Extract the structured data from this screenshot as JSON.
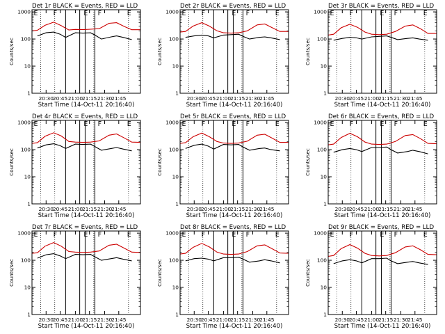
{
  "figure": {
    "suptitle": "",
    "background": "#ffffff"
  },
  "chart_data": [
    {
      "type": "line",
      "title": "Det 1r BLACK = Events, RED = LLD",
      "xlabel": "Start Time (14-Oct-11 20:16:40)",
      "ylabel": "Counts/sec",
      "xticks": [
        "20:30",
        "20:45",
        "21:00",
        "21:15",
        "21:30",
        "21:45"
      ],
      "yticks": [
        "1",
        "10",
        "100",
        "1000"
      ],
      "ylim": [
        1,
        1200
      ],
      "ylog": true,
      "flags": [
        "E",
        "F",
        "E",
        "F",
        "E"
      ],
      "grid": "dotted vertical",
      "series": [
        {
          "name": "Events",
          "color": "#000000",
          "x": [
            0,
            0.05,
            0.13,
            0.2,
            0.26,
            0.31,
            0.4,
            0.47,
            0.54,
            0.58,
            0.64,
            0.73,
            0.78,
            0.84,
            0.92,
            1.0
          ],
          "y": [
            null,
            130,
            170,
            180,
            150,
            115,
            170,
            165,
            170,
            140,
            100,
            120,
            130,
            115,
            95,
            null
          ]
        },
        {
          "name": "LLD",
          "color": "#cc0000",
          "x": [
            0,
            0.05,
            0.12,
            0.2,
            0.27,
            0.34,
            0.4,
            0.47,
            0.54,
            0.62,
            0.71,
            0.78,
            0.85,
            0.92,
            1.0
          ],
          "y": [
            200,
            210,
            320,
            420,
            310,
            215,
            225,
            222,
            230,
            240,
            380,
            400,
            290,
            220,
            220
          ]
        }
      ]
    },
    {
      "type": "line",
      "title": "Det 2r BLACK = Events, RED = LLD",
      "xlabel": "Start Time (14-Oct-11 20:16:40)",
      "ylabel": "Counts/sec",
      "xticks": [
        "20:30",
        "20:45",
        "21:00",
        "21:15",
        "21:30",
        "21:45"
      ],
      "yticks": [
        "1",
        "10",
        "100",
        "1000"
      ],
      "ylim": [
        1,
        1200
      ],
      "ylog": true,
      "flags": [
        "E",
        "F",
        "E",
        "F",
        "E"
      ],
      "grid": "dotted vertical",
      "series": [
        {
          "name": "Events",
          "color": "#000000",
          "x": [
            0,
            0.05,
            0.13,
            0.2,
            0.26,
            0.31,
            0.4,
            0.47,
            0.54,
            0.58,
            0.64,
            0.73,
            0.78,
            0.84,
            0.92,
            1.0
          ],
          "y": [
            null,
            115,
            130,
            140,
            130,
            110,
            140,
            145,
            150,
            125,
            100,
            115,
            120,
            110,
            95,
            null
          ]
        },
        {
          "name": "LLD",
          "color": "#cc0000",
          "x": [
            0,
            0.05,
            0.12,
            0.2,
            0.27,
            0.34,
            0.4,
            0.47,
            0.54,
            0.62,
            0.71,
            0.78,
            0.85,
            0.92,
            1.0
          ],
          "y": [
            180,
            190,
            300,
            400,
            300,
            200,
            170,
            165,
            170,
            200,
            330,
            360,
            260,
            190,
            190
          ]
        }
      ]
    },
    {
      "type": "line",
      "title": "Det 3r BLACK = Events, RED = LLD",
      "xlabel": "Start Time (14-Oct-11 20:16:40)",
      "ylabel": "Counts/sec",
      "xticks": [
        "20:30",
        "20:45",
        "21:00",
        "21:15",
        "21:30",
        "21:45"
      ],
      "yticks": [
        "1",
        "10",
        "100",
        "1000"
      ],
      "ylim": [
        1,
        1200
      ],
      "ylog": true,
      "flags": [
        "E",
        "F",
        "E",
        "F",
        "E"
      ],
      "grid": "dotted vertical",
      "series": [
        {
          "name": "Events",
          "color": "#000000",
          "x": [
            0,
            0.05,
            0.13,
            0.2,
            0.26,
            0.31,
            0.4,
            0.47,
            0.54,
            0.58,
            0.64,
            0.73,
            0.78,
            0.84,
            0.92,
            1.0
          ],
          "y": [
            null,
            90,
            105,
            115,
            110,
            100,
            120,
            125,
            130,
            115,
            95,
            105,
            110,
            100,
            90,
            null
          ]
        },
        {
          "name": "LLD",
          "color": "#cc0000",
          "x": [
            0,
            0.05,
            0.12,
            0.2,
            0.27,
            0.34,
            0.4,
            0.47,
            0.54,
            0.62,
            0.71,
            0.78,
            0.85,
            0.92,
            1.0
          ],
          "y": [
            140,
            150,
            260,
            350,
            270,
            180,
            150,
            145,
            150,
            190,
            300,
            330,
            240,
            160,
            160
          ]
        }
      ]
    },
    {
      "type": "line",
      "title": "Det 4r BLACK = Events, RED = LLD",
      "xlabel": "Start Time (14-Oct-11 20:16:40)",
      "ylabel": "Counts/sec",
      "xticks": [
        "20:30",
        "20:45",
        "21:00",
        "21:15",
        "21:30",
        "21:45"
      ],
      "yticks": [
        "1",
        "10",
        "100",
        "1000"
      ],
      "ylim": [
        1,
        1200
      ],
      "ylog": true,
      "flags": [
        "E",
        "F",
        "E",
        "F",
        "E"
      ],
      "grid": "dotted vertical",
      "series": [
        {
          "name": "Events",
          "color": "#000000",
          "x": [
            0,
            0.05,
            0.13,
            0.2,
            0.26,
            0.31,
            0.4,
            0.47,
            0.54,
            0.58,
            0.64,
            0.73,
            0.78,
            0.84,
            0.92,
            1.0
          ],
          "y": [
            null,
            115,
            150,
            165,
            140,
            110,
            160,
            155,
            160,
            130,
            95,
            110,
            120,
            105,
            90,
            null
          ]
        },
        {
          "name": "LLD",
          "color": "#cc0000",
          "x": [
            0,
            0.05,
            0.12,
            0.2,
            0.27,
            0.34,
            0.4,
            0.47,
            0.54,
            0.62,
            0.71,
            0.78,
            0.85,
            0.92,
            1.0
          ],
          "y": [
            170,
            180,
            310,
            420,
            320,
            200,
            190,
            185,
            190,
            210,
            340,
            380,
            270,
            190,
            185
          ]
        }
      ]
    },
    {
      "type": "line",
      "title": "Det 5r BLACK = Events, RED = LLD",
      "xlabel": "Start Time (14-Oct-11 20:16:40)",
      "ylabel": "Counts/sec",
      "xticks": [
        "20:30",
        "20:45",
        "21:00",
        "21:15",
        "21:30",
        "21:45"
      ],
      "yticks": [
        "1",
        "10",
        "100",
        "1000"
      ],
      "ylim": [
        1,
        1200
      ],
      "ylog": true,
      "flags": [
        "E",
        "F",
        "E",
        "F",
        "E"
      ],
      "grid": "dotted vertical",
      "series": [
        {
          "name": "Events",
          "color": "#000000",
          "x": [
            0,
            0.05,
            0.13,
            0.2,
            0.26,
            0.31,
            0.4,
            0.47,
            0.54,
            0.58,
            0.64,
            0.73,
            0.78,
            0.84,
            0.92,
            1.0
          ],
          "y": [
            null,
            110,
            145,
            160,
            135,
            105,
            155,
            150,
            155,
            125,
            95,
            110,
            115,
            100,
            90,
            null
          ]
        },
        {
          "name": "LLD",
          "color": "#cc0000",
          "x": [
            0,
            0.05,
            0.12,
            0.2,
            0.27,
            0.34,
            0.4,
            0.47,
            0.54,
            0.62,
            0.71,
            0.78,
            0.85,
            0.92,
            1.0
          ],
          "y": [
            170,
            180,
            300,
            410,
            300,
            200,
            175,
            170,
            175,
            205,
            340,
            370,
            265,
            185,
            185
          ]
        }
      ]
    },
    {
      "type": "line",
      "title": "Det 6r BLACK = Events, RED = LLD",
      "xlabel": "Start Time (14-Oct-11 20:16:40)",
      "ylabel": "Counts/sec",
      "xticks": [
        "20:30",
        "20:45",
        "21:00",
        "21:15",
        "21:30",
        "21:45"
      ],
      "yticks": [
        "1",
        "10",
        "100",
        "1000"
      ],
      "ylim": [
        1,
        1200
      ],
      "ylog": true,
      "flags": [
        "E",
        "F",
        "E",
        "F",
        "E"
      ],
      "grid": "dotted vertical",
      "series": [
        {
          "name": "Events",
          "color": "#000000",
          "x": [
            0,
            0.05,
            0.13,
            0.2,
            0.26,
            0.31,
            0.4,
            0.47,
            0.54,
            0.58,
            0.64,
            0.73,
            0.78,
            0.84,
            0.92,
            1.0
          ],
          "y": [
            null,
            80,
            100,
            110,
            100,
            85,
            120,
            120,
            125,
            100,
            75,
            85,
            95,
            85,
            70,
            null
          ]
        },
        {
          "name": "LLD",
          "color": "#cc0000",
          "x": [
            0,
            0.05,
            0.12,
            0.2,
            0.27,
            0.34,
            0.4,
            0.47,
            0.54,
            0.62,
            0.71,
            0.78,
            0.85,
            0.92,
            1.0
          ],
          "y": [
            150,
            160,
            280,
            400,
            300,
            190,
            160,
            155,
            160,
            200,
            330,
            360,
            255,
            170,
            165
          ]
        }
      ]
    },
    {
      "type": "line",
      "title": "Det 7r BLACK = Events, RED = LLD",
      "xlabel": "Start Time (14-Oct-11 20:16:40)",
      "ylabel": "Counts/sec",
      "xticks": [
        "20:30",
        "20:45",
        "21:00",
        "21:15",
        "21:30",
        "21:45"
      ],
      "yticks": [
        "1",
        "10",
        "100",
        "1000"
      ],
      "ylim": [
        1,
        1200
      ],
      "ylog": true,
      "flags": [
        "E",
        "F",
        "E",
        "F",
        "E"
      ],
      "grid": "dotted vertical",
      "series": [
        {
          "name": "Events",
          "color": "#000000",
          "x": [
            0,
            0.05,
            0.13,
            0.2,
            0.26,
            0.31,
            0.4,
            0.47,
            0.54,
            0.58,
            0.64,
            0.73,
            0.78,
            0.84,
            0.92,
            1.0
          ],
          "y": [
            null,
            120,
            160,
            175,
            145,
            115,
            165,
            160,
            165,
            135,
            100,
            115,
            125,
            110,
            95,
            null
          ]
        },
        {
          "name": "LLD",
          "color": "#cc0000",
          "x": [
            0,
            0.05,
            0.12,
            0.2,
            0.27,
            0.34,
            0.4,
            0.47,
            0.54,
            0.62,
            0.71,
            0.78,
            0.85,
            0.92,
            1.0
          ],
          "y": [
            180,
            190,
            330,
            450,
            330,
            210,
            200,
            195,
            200,
            220,
            360,
            390,
            280,
            200,
            195
          ]
        }
      ]
    },
    {
      "type": "line",
      "title": "Det 8r BLACK = Events, RED = LLD",
      "xlabel": "Start Time (14-Oct-11 20:16:40)",
      "ylabel": "Counts/sec",
      "xticks": [
        "20:30",
        "20:45",
        "21:00",
        "21:15",
        "21:30",
        "21:45"
      ],
      "yticks": [
        "1",
        "10",
        "100",
        "1000"
      ],
      "ylim": [
        1,
        1200
      ],
      "ylog": true,
      "flags": [
        "E",
        "F",
        "E",
        "F",
        "E"
      ],
      "grid": "dotted vertical",
      "series": [
        {
          "name": "Events",
          "color": "#000000",
          "x": [
            0,
            0.05,
            0.13,
            0.2,
            0.26,
            0.31,
            0.4,
            0.47,
            0.54,
            0.58,
            0.64,
            0.73,
            0.78,
            0.84,
            0.92,
            1.0
          ],
          "y": [
            null,
            95,
            115,
            120,
            110,
            95,
            125,
            125,
            130,
            110,
            85,
            95,
            105,
            95,
            80,
            null
          ]
        },
        {
          "name": "LLD",
          "color": "#cc0000",
          "x": [
            0,
            0.05,
            0.12,
            0.2,
            0.27,
            0.34,
            0.4,
            0.47,
            0.54,
            0.62,
            0.71,
            0.78,
            0.85,
            0.92,
            1.0
          ],
          "y": [
            170,
            180,
            300,
            420,
            310,
            200,
            170,
            165,
            170,
            210,
            340,
            370,
            265,
            185,
            180
          ]
        }
      ]
    },
    {
      "type": "line",
      "title": "Det 9r BLACK = Events, RED = LLD",
      "xlabel": "Start Time (14-Oct-11 20:16:40)",
      "ylabel": "Counts/sec",
      "xticks": [
        "20:30",
        "20:45",
        "21:00",
        "21:15",
        "21:30",
        "21:45"
      ],
      "yticks": [
        "1",
        "10",
        "100",
        "1000"
      ],
      "ylim": [
        1,
        1200
      ],
      "ylog": true,
      "flags": [
        "E",
        "F",
        "E",
        "F",
        "E"
      ],
      "grid": "dotted vertical",
      "series": [
        {
          "name": "Events",
          "color": "#000000",
          "x": [
            0,
            0.05,
            0.13,
            0.2,
            0.26,
            0.31,
            0.4,
            0.47,
            0.54,
            0.58,
            0.64,
            0.73,
            0.78,
            0.84,
            0.92,
            1.0
          ],
          "y": [
            null,
            75,
            95,
            105,
            95,
            80,
            115,
            115,
            120,
            95,
            75,
            85,
            90,
            80,
            70,
            null
          ]
        },
        {
          "name": "LLD",
          "color": "#cc0000",
          "x": [
            0,
            0.05,
            0.12,
            0.2,
            0.27,
            0.34,
            0.4,
            0.47,
            0.54,
            0.62,
            0.71,
            0.78,
            0.85,
            0.92,
            1.0
          ],
          "y": [
            140,
            150,
            270,
            380,
            280,
            180,
            150,
            145,
            150,
            190,
            310,
            340,
            245,
            165,
            160
          ]
        }
      ]
    }
  ]
}
